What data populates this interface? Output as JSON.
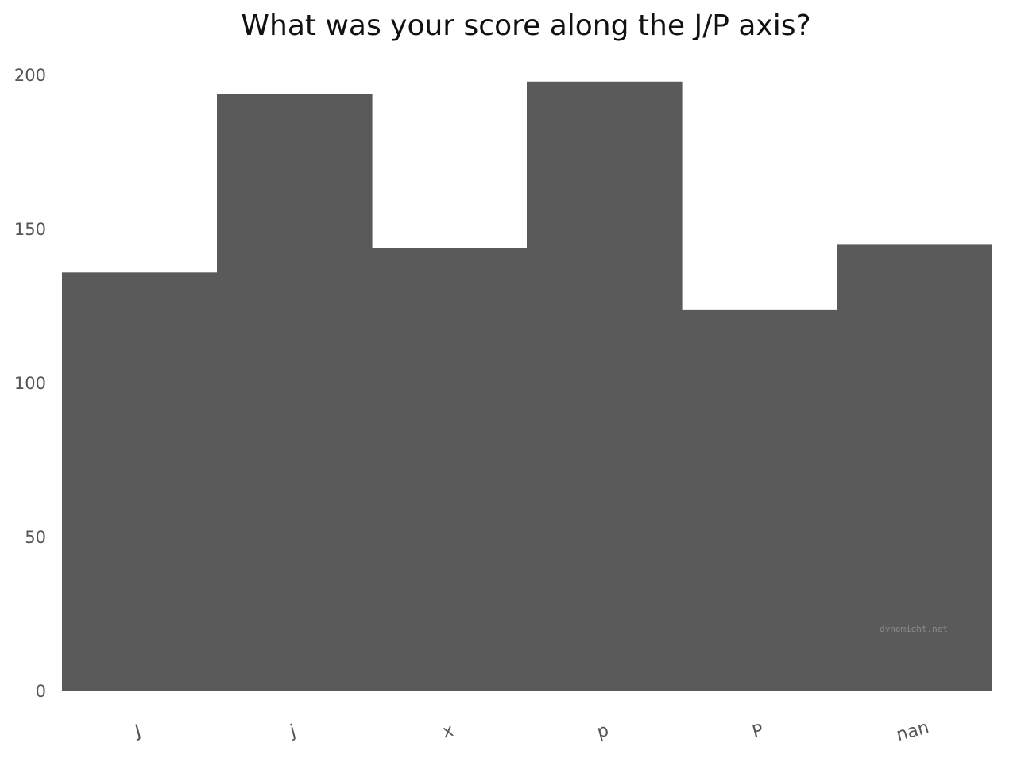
{
  "chart_data": {
    "type": "bar",
    "title": "What was your score along the J/P axis?",
    "xlabel": "",
    "ylabel": "",
    "categories": [
      "J",
      "j",
      "x",
      "p",
      "P",
      "nan"
    ],
    "values": [
      136,
      194,
      144,
      198,
      124,
      145
    ],
    "ylim": [
      0,
      200
    ],
    "yticks": [
      0,
      50,
      100,
      150,
      200
    ],
    "grid": false,
    "legend": "none",
    "bar_color": "#5a5a5a",
    "watermark": "dynomight.net"
  }
}
